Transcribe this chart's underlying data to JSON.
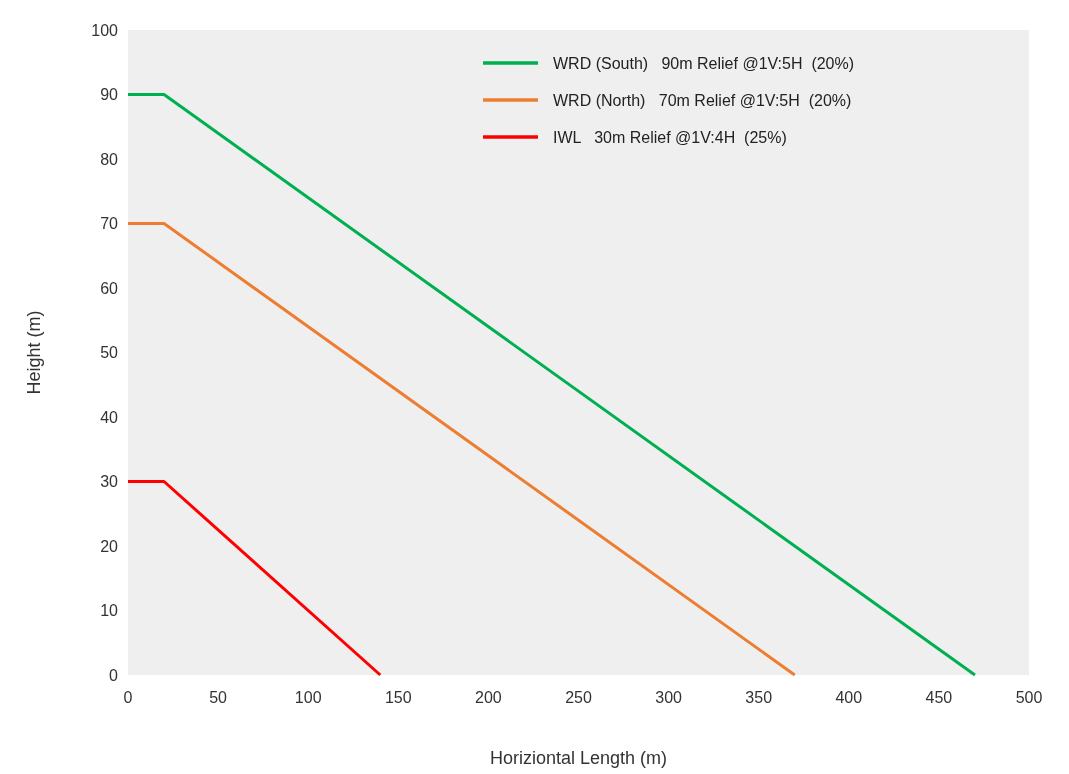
{
  "chart_data": {
    "type": "line",
    "xlabel": "Horiziontal Length (m)",
    "ylabel": "Height (m)",
    "xlim": [
      0,
      500
    ],
    "ylim": [
      0,
      100
    ],
    "xticks": [
      0,
      50,
      100,
      150,
      200,
      250,
      300,
      350,
      400,
      450,
      500
    ],
    "yticks": [
      0,
      10,
      20,
      30,
      40,
      50,
      60,
      70,
      80,
      90,
      100
    ],
    "grid": false,
    "legend": "top right",
    "marker": "none",
    "line_style": "solid",
    "series": [
      {
        "name": "WRD (South)   90m Relief @1V:5H  (20%)",
        "color": "#00b050",
        "x": [
          0,
          20,
          470
        ],
        "values": [
          90,
          90,
          0
        ]
      },
      {
        "name": "WRD (North)   70m Relief @1V:5H  (20%)",
        "color": "#ed7d31",
        "x": [
          0,
          20,
          370
        ],
        "values": [
          70,
          70,
          0
        ]
      },
      {
        "name": "IWL   30m Relief @1V:4H  (25%)",
        "color": "#ff0000",
        "x": [
          0,
          20,
          140
        ],
        "values": [
          30,
          30,
          0
        ]
      }
    ]
  }
}
